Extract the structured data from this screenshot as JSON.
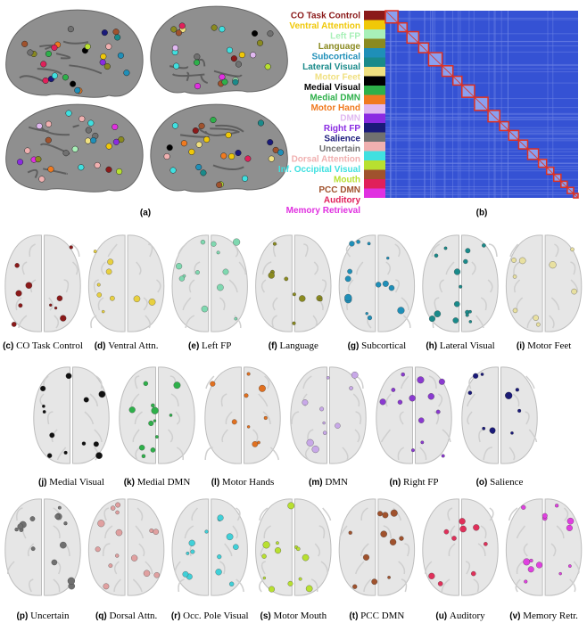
{
  "panel_a": {
    "label": "(a)"
  },
  "panel_b": {
    "label": "(b)",
    "networks": [
      {
        "name": "CO Task Control",
        "color": "#8b1a1a"
      },
      {
        "name": "Ventral Attention",
        "color": "#f0c808"
      },
      {
        "name": "Left FP",
        "color": "#a8f0b8"
      },
      {
        "name": "Language",
        "color": "#8a8a20"
      },
      {
        "name": "Subcortical",
        "color": "#1f8fb8"
      },
      {
        "name": "Lateral Visual",
        "color": "#1a8a8a"
      },
      {
        "name": "Motor Feet",
        "color": "#f0e080"
      },
      {
        "name": "Medial Visual",
        "color": "#000000"
      },
      {
        "name": "Medial DMN",
        "color": "#2eb04a"
      },
      {
        "name": "Motor Hand",
        "color": "#f07a20"
      },
      {
        "name": "DMN",
        "color": "#e0b8f0"
      },
      {
        "name": "Right FP",
        "color": "#8a2be2"
      },
      {
        "name": "Salience",
        "color": "#1a1a7a"
      },
      {
        "name": "Uncertain",
        "color": "#707070"
      },
      {
        "name": "Dorsal Attention",
        "color": "#f0b0b0"
      },
      {
        "name": "Inf. Occipital Visual",
        "color": "#40e0e0"
      },
      {
        "name": "Mouth",
        "color": "#b8e030"
      },
      {
        "name": "PCC DMN",
        "color": "#a0522d"
      },
      {
        "name": "Auditory",
        "color": "#e0205a"
      },
      {
        "name": "Memory Retrieval",
        "color": "#e030e0"
      }
    ]
  },
  "panels": [
    {
      "label": "(c)",
      "name": "CO Task Control",
      "color": "#8b1a1a"
    },
    {
      "label": "(d)",
      "name": "Ventral Attn.",
      "color": "#e8d040"
    },
    {
      "label": "(e)",
      "name": "Left FP",
      "color": "#7fd8b0"
    },
    {
      "label": "(f)",
      "name": "Language",
      "color": "#8a8a20"
    },
    {
      "label": "(g)",
      "name": "Subcortical",
      "color": "#1f8fb8"
    },
    {
      "label": "(h)",
      "name": "Lateral Visual",
      "color": "#1a8a8a"
    },
    {
      "label": "(i)",
      "name": "Motor Feet",
      "color": "#e8e0a0"
    },
    {
      "label": "(j)",
      "name": "Medial Visual",
      "color": "#111111"
    },
    {
      "label": "(k)",
      "name": "Medial DMN",
      "color": "#2eb04a"
    },
    {
      "label": "(l)",
      "name": "Motor Hands",
      "color": "#e07020"
    },
    {
      "label": "(m)",
      "name": "DMN",
      "color": "#c8a8e8"
    },
    {
      "label": "(n)",
      "name": "Right FP",
      "color": "#8a3ad0"
    },
    {
      "label": "(o)",
      "name": "Salience",
      "color": "#1a1a7a"
    },
    {
      "label": "(p)",
      "name": "Uncertain",
      "color": "#707070"
    },
    {
      "label": "(q)",
      "name": "Dorsal Attn.",
      "color": "#e0a0a0"
    },
    {
      "label": "(r)",
      "name": "Occ. Pole Visual",
      "color": "#40d0d8"
    },
    {
      "label": "(s)",
      "name": "Motor Mouth",
      "color": "#b8e030"
    },
    {
      "label": "(t)",
      "name": "PCC DMN",
      "color": "#a0522d"
    },
    {
      "label": "(u)",
      "name": "Auditory",
      "color": "#e0305a"
    },
    {
      "label": "(v)",
      "name": "Memory Retr.",
      "color": "#e040e0"
    }
  ]
}
